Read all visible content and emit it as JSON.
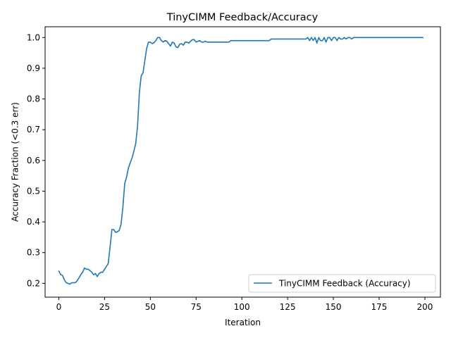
{
  "chart_data": {
    "type": "line",
    "title": "TinyCIMM Feedback/Accuracy",
    "xlabel": "Iteration",
    "ylabel": "Accuracy Fraction (<0.3 err)",
    "xlim": [
      -7.5,
      208.5
    ],
    "ylim": [
      0.155,
      1.035
    ],
    "xticks": [
      0,
      25,
      50,
      75,
      100,
      125,
      150,
      175,
      200
    ],
    "yticks": [
      0.2,
      0.3,
      0.4,
      0.5,
      0.6,
      0.7,
      0.8,
      0.9,
      1.0
    ],
    "ytick_labels": [
      "0.2",
      "0.3",
      "0.4",
      "0.5",
      "0.6",
      "0.7",
      "0.8",
      "0.9",
      "1.0"
    ],
    "grid": false,
    "legend_position": "lower-right",
    "series": [
      {
        "name": "TinyCIMM Feedback (Accuracy)",
        "color": "#1f77b4",
        "x": [
          0,
          1,
          2,
          3,
          4,
          5,
          6,
          7,
          8,
          9,
          10,
          11,
          12,
          13,
          14,
          15,
          16,
          17,
          18,
          19,
          20,
          21,
          22,
          23,
          24,
          25,
          26,
          27,
          28,
          29,
          30,
          31,
          32,
          33,
          34,
          35,
          36,
          37,
          38,
          39,
          40,
          41,
          42,
          43,
          44,
          45,
          46,
          47,
          48,
          49,
          50,
          51,
          52,
          53,
          54,
          55,
          56,
          57,
          58,
          59,
          60,
          61,
          62,
          63,
          64,
          65,
          66,
          67,
          68,
          69,
          70,
          71,
          72,
          73,
          74,
          75,
          76,
          77,
          78,
          79,
          80,
          81,
          82,
          83,
          84,
          85,
          90,
          93,
          94,
          100,
          110,
          115,
          116,
          120,
          130,
          135,
          136,
          137,
          138,
          139,
          140,
          141,
          142,
          143,
          144,
          145,
          146,
          147,
          148,
          149,
          150,
          151,
          152,
          153,
          154,
          155,
          156,
          157,
          158,
          159,
          160,
          161,
          162,
          163,
          170,
          180,
          190,
          199
        ],
        "y": [
          0.24,
          0.228,
          0.226,
          0.212,
          0.202,
          0.2,
          0.197,
          0.202,
          0.202,
          0.202,
          0.208,
          0.218,
          0.228,
          0.236,
          0.25,
          0.246,
          0.246,
          0.242,
          0.236,
          0.228,
          0.232,
          0.222,
          0.232,
          0.236,
          0.236,
          0.246,
          0.255,
          0.265,
          0.318,
          0.375,
          0.375,
          0.366,
          0.368,
          0.372,
          0.392,
          0.448,
          0.525,
          0.545,
          0.575,
          0.592,
          0.608,
          0.63,
          0.655,
          0.71,
          0.82,
          0.875,
          0.885,
          0.925,
          0.965,
          0.985,
          0.985,
          0.98,
          0.983,
          0.99,
          1.0,
          1.0,
          0.99,
          0.985,
          0.99,
          0.988,
          0.98,
          0.972,
          0.985,
          0.982,
          0.97,
          0.967,
          0.978,
          0.98,
          0.975,
          0.985,
          0.985,
          0.982,
          0.988,
          0.993,
          0.993,
          0.985,
          0.988,
          0.99,
          0.985,
          0.985,
          0.988,
          0.985,
          0.985,
          0.985,
          0.985,
          0.985,
          0.985,
          0.985,
          0.99,
          0.99,
          0.99,
          0.99,
          0.995,
          0.995,
          0.995,
          0.995,
          1.0,
          0.99,
          1.0,
          0.99,
          1.0,
          0.982,
          1.0,
          0.99,
          0.99,
          1.0,
          0.985,
          1.0,
          1.0,
          0.99,
          1.0,
          1.0,
          0.99,
          1.0,
          0.995,
          0.995,
          1.0,
          0.995,
          1.0,
          1.0,
          0.995,
          1.0,
          1.0,
          1.0,
          1.0,
          1.0,
          1.0,
          1.0
        ]
      }
    ]
  }
}
